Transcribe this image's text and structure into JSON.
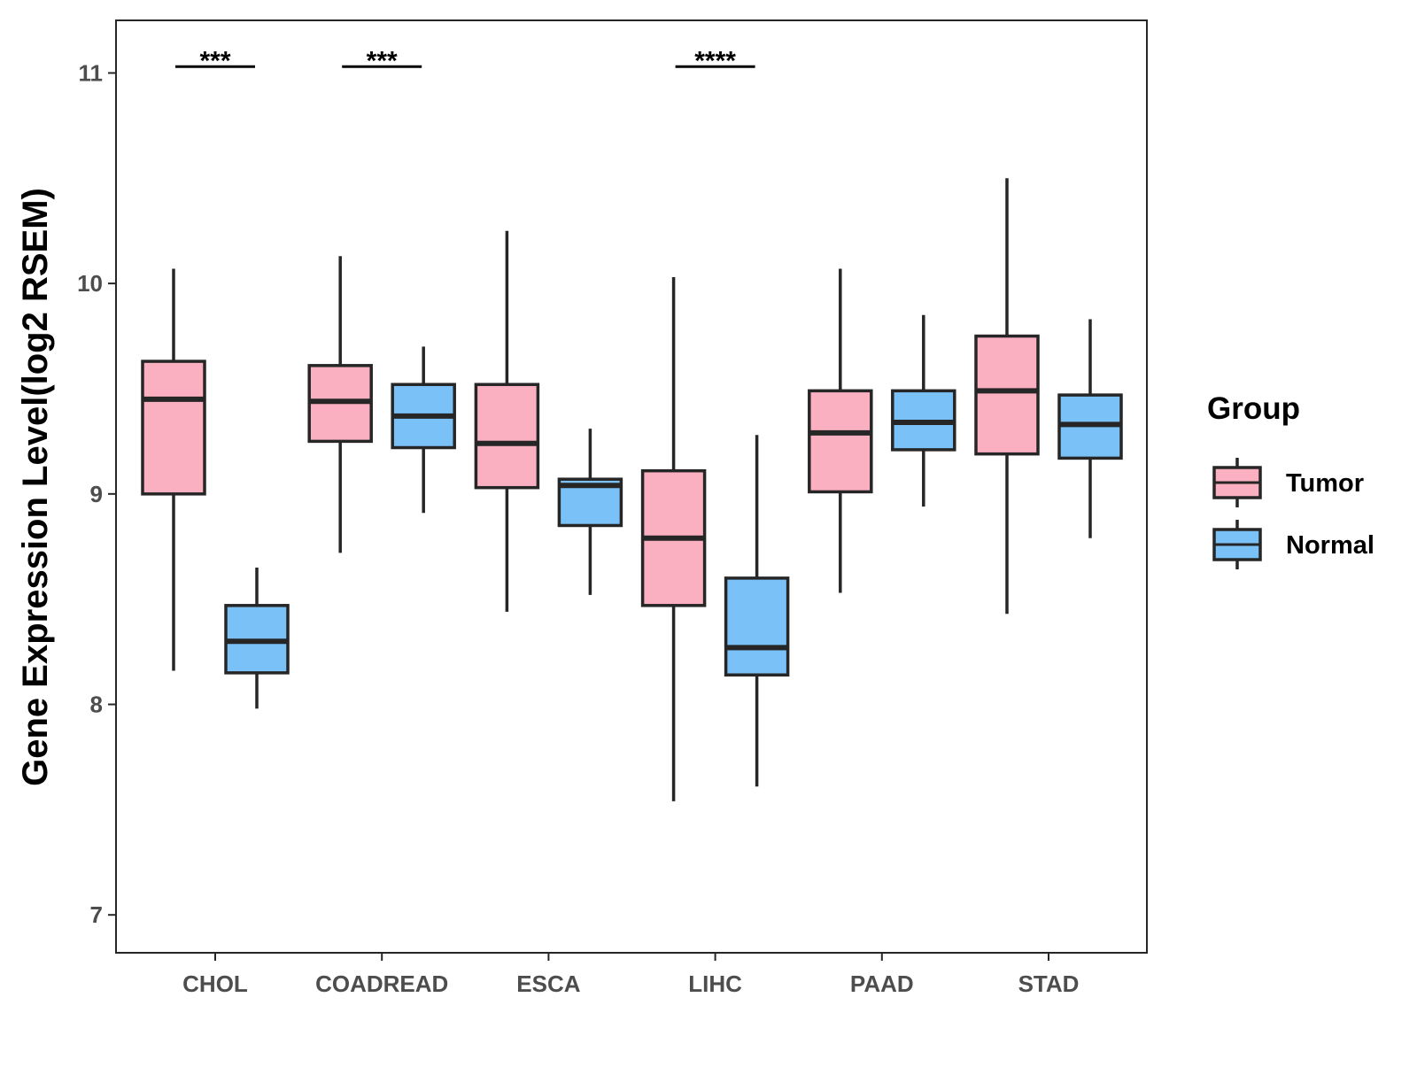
{
  "chart_data": {
    "type": "boxplot",
    "ylabel": "Gene Expression Level(log2 RSEM)",
    "xlabel": "",
    "ylim": [
      6.82,
      11.25
    ],
    "yticks": [
      7,
      8,
      9,
      10,
      11
    ],
    "categories": [
      "CHOL",
      "COADREAD",
      "ESCA",
      "LIHC",
      "PAAD",
      "STAD"
    ],
    "legend": {
      "title": "Group",
      "position": "right",
      "items": [
        {
          "name": "Tumor",
          "color": "#FBB0C2"
        },
        {
          "name": "Normal",
          "color": "#7AC1F8"
        }
      ]
    },
    "series": [
      {
        "name": "Tumor",
        "color": "#FBB0C2",
        "boxes": [
          {
            "category": "CHOL",
            "min": 8.16,
            "q1": 9.0,
            "median": 9.45,
            "q3": 9.63,
            "max": 10.07
          },
          {
            "category": "COADREAD",
            "min": 8.72,
            "q1": 9.25,
            "median": 9.44,
            "q3": 9.61,
            "max": 10.13
          },
          {
            "category": "ESCA",
            "min": 8.44,
            "q1": 9.03,
            "median": 9.24,
            "q3": 9.52,
            "max": 10.25
          },
          {
            "category": "LIHC",
            "min": 7.54,
            "q1": 8.47,
            "median": 8.79,
            "q3": 9.11,
            "max": 10.03
          },
          {
            "category": "PAAD",
            "min": 8.53,
            "q1": 9.01,
            "median": 9.29,
            "q3": 9.49,
            "max": 10.07
          },
          {
            "category": "STAD",
            "min": 8.43,
            "q1": 9.19,
            "median": 9.49,
            "q3": 9.75,
            "max": 10.5
          }
        ]
      },
      {
        "name": "Normal",
        "color": "#7AC1F8",
        "boxes": [
          {
            "category": "CHOL",
            "min": 7.98,
            "q1": 8.15,
            "median": 8.3,
            "q3": 8.47,
            "max": 8.65
          },
          {
            "category": "COADREAD",
            "min": 8.91,
            "q1": 9.22,
            "median": 9.37,
            "q3": 9.52,
            "max": 9.7
          },
          {
            "category": "ESCA",
            "min": 8.52,
            "q1": 8.85,
            "median": 9.04,
            "q3": 9.07,
            "max": 9.31
          },
          {
            "category": "LIHC",
            "min": 7.61,
            "q1": 8.14,
            "median": 8.27,
            "q3": 8.6,
            "max": 9.28
          },
          {
            "category": "PAAD",
            "min": 8.94,
            "q1": 9.21,
            "median": 9.34,
            "q3": 9.49,
            "max": 9.85
          },
          {
            "category": "STAD",
            "min": 8.79,
            "q1": 9.17,
            "median": 9.33,
            "q3": 9.47,
            "max": 9.83
          }
        ]
      }
    ],
    "annotations": [
      {
        "category": "CHOL",
        "label": "***",
        "y": 11.03
      },
      {
        "category": "COADREAD",
        "label": "***",
        "y": 11.03
      },
      {
        "category": "LIHC",
        "label": "****",
        "y": 11.03
      }
    ]
  }
}
